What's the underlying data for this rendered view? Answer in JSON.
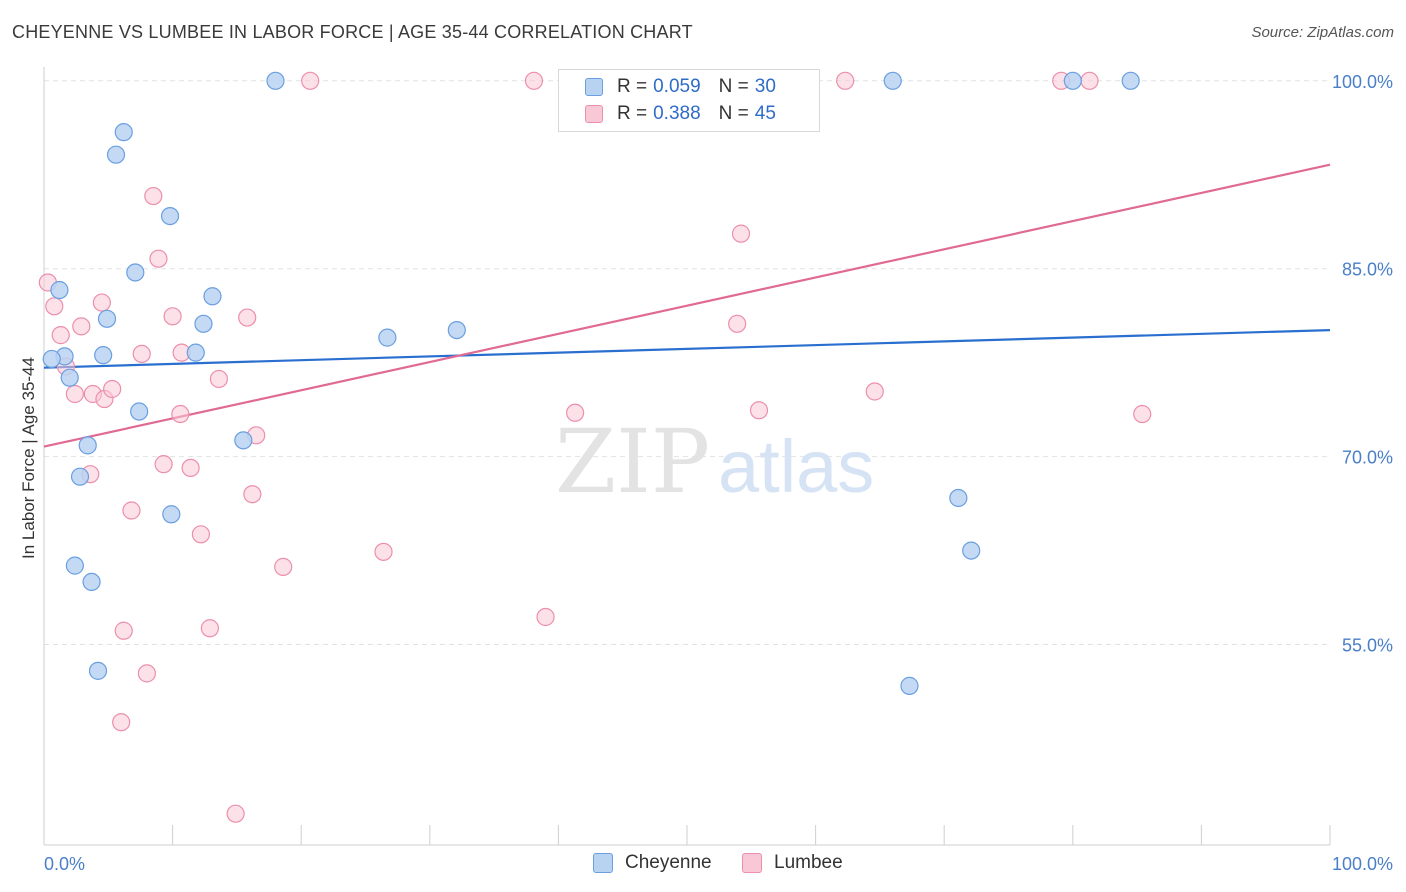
{
  "title": "CHEYENNE VS LUMBEE IN LABOR FORCE | AGE 35-44 CORRELATION CHART",
  "source": "Source: ZipAtlas.com",
  "watermark": {
    "zip": "ZIP",
    "atlas": "atlas"
  },
  "colors": {
    "cheyenne_fill": "#b8d2f2",
    "cheyenne_stroke": "#6a9fe0",
    "cheyenne_line": "#2a6fcf",
    "lumbee_fill": "#f9c8d7",
    "lumbee_stroke": "#ec8fac",
    "lumbee_line": "#e06a94",
    "tick_label": "#4a7fc8"
  },
  "legend": {
    "rows": [
      {
        "r_label": "R =",
        "r_value": "0.059",
        "n_label": "N =",
        "n_value": "30"
      },
      {
        "r_label": "R =",
        "r_value": "0.388",
        "n_label": "N =",
        "n_value": "45"
      }
    ]
  },
  "bottom_legend": {
    "cheyenne": "Cheyenne",
    "lumbee": "Lumbee"
  },
  "chart_data": {
    "type": "scatter",
    "title": "CHEYENNE VS LUMBEE IN LABOR FORCE | AGE 35-44 CORRELATION CHART",
    "xlabel": "",
    "ylabel": "In Labor Force | Age 35-44",
    "xlim": [
      0,
      100
    ],
    "ylim": [
      39,
      101.5
    ],
    "x_tick_labels": [
      "0.0%",
      "100.0%"
    ],
    "y_ticks": [
      55,
      70,
      85,
      100
    ],
    "y_tick_labels": [
      "55.0%",
      "70.0%",
      "85.0%",
      "100.0%"
    ],
    "grid": true,
    "legend_position": "top-center",
    "series": [
      {
        "name": "Cheyenne",
        "r": 0.059,
        "n": 30,
        "trend": {
          "x": [
            0,
            100
          ],
          "y": [
            77.1,
            80.1
          ]
        },
        "points": [
          [
            18.0,
            100.0
          ],
          [
            66.0,
            100.0
          ],
          [
            80.0,
            100.0
          ],
          [
            84.5,
            100.0
          ],
          [
            6.2,
            95.9
          ],
          [
            5.6,
            94.1
          ],
          [
            9.8,
            89.2
          ],
          [
            7.1,
            84.7
          ],
          [
            1.2,
            83.3
          ],
          [
            13.1,
            82.8
          ],
          [
            4.9,
            81.0
          ],
          [
            12.4,
            80.6
          ],
          [
            32.1,
            80.1
          ],
          [
            26.7,
            79.5
          ],
          [
            1.6,
            78.0
          ],
          [
            0.6,
            77.8
          ],
          [
            4.6,
            78.1
          ],
          [
            11.8,
            78.3
          ],
          [
            2.0,
            76.3
          ],
          [
            7.4,
            73.6
          ],
          [
            15.5,
            71.3
          ],
          [
            3.4,
            70.9
          ],
          [
            2.8,
            68.4
          ],
          [
            9.9,
            65.4
          ],
          [
            71.1,
            66.7
          ],
          [
            72.1,
            62.5
          ],
          [
            2.4,
            61.3
          ],
          [
            3.7,
            60.0
          ],
          [
            4.2,
            52.9
          ],
          [
            67.3,
            51.7
          ]
        ]
      },
      {
        "name": "Lumbee",
        "r": 0.388,
        "n": 45,
        "trend": {
          "x": [
            0,
            100
          ],
          "y": [
            70.8,
            93.3
          ]
        },
        "points": [
          [
            20.7,
            100.0
          ],
          [
            38.1,
            100.0
          ],
          [
            50.0,
            100.0
          ],
          [
            62.3,
            100.0
          ],
          [
            79.1,
            100.0
          ],
          [
            81.3,
            100.0
          ],
          [
            8.5,
            90.8
          ],
          [
            54.2,
            87.8
          ],
          [
            8.9,
            85.8
          ],
          [
            0.3,
            83.9
          ],
          [
            0.8,
            82.0
          ],
          [
            4.5,
            82.3
          ],
          [
            10.0,
            81.2
          ],
          [
            15.8,
            81.1
          ],
          [
            2.9,
            80.4
          ],
          [
            1.3,
            79.7
          ],
          [
            53.9,
            80.6
          ],
          [
            7.6,
            78.2
          ],
          [
            10.7,
            78.3
          ],
          [
            1.7,
            77.2
          ],
          [
            13.6,
            76.2
          ],
          [
            2.4,
            75.0
          ],
          [
            3.8,
            75.0
          ],
          [
            4.7,
            74.6
          ],
          [
            5.3,
            75.4
          ],
          [
            64.6,
            75.2
          ],
          [
            10.6,
            73.4
          ],
          [
            41.3,
            73.5
          ],
          [
            55.6,
            73.7
          ],
          [
            85.4,
            73.4
          ],
          [
            16.5,
            71.7
          ],
          [
            9.3,
            69.4
          ],
          [
            11.4,
            69.1
          ],
          [
            3.6,
            68.6
          ],
          [
            16.2,
            67.0
          ],
          [
            6.8,
            65.7
          ],
          [
            12.2,
            63.8
          ],
          [
            26.4,
            62.4
          ],
          [
            18.6,
            61.2
          ],
          [
            39.0,
            57.2
          ],
          [
            6.2,
            56.1
          ],
          [
            12.9,
            56.3
          ],
          [
            8.0,
            52.7
          ],
          [
            6.0,
            48.8
          ],
          [
            14.9,
            41.5
          ]
        ]
      }
    ]
  }
}
